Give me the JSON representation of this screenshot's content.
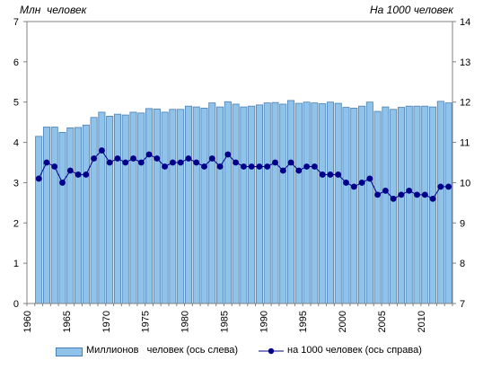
{
  "chart_data": {
    "type": "bar+line",
    "left_axis_title": "Млн  человек",
    "right_axis_title": "На 1000 человек",
    "left_ylim": [
      0,
      7
    ],
    "right_ylim": [
      7,
      14
    ],
    "left_ticks": [
      "0",
      "1",
      "2",
      "3",
      "4",
      "5",
      "6",
      "7"
    ],
    "right_ticks": [
      "7",
      "8",
      "9",
      "10",
      "11",
      "12",
      "13",
      "14"
    ],
    "x_ticks": [
      "1960",
      "1965",
      "1970",
      "1975",
      "1980",
      "1985",
      "1990",
      "1995",
      "2000",
      "2005",
      "2010"
    ],
    "years": [
      1961,
      1962,
      1963,
      1964,
      1965,
      1966,
      1967,
      1968,
      1969,
      1970,
      1971,
      1972,
      1973,
      1974,
      1975,
      1976,
      1977,
      1978,
      1979,
      1980,
      1981,
      1982,
      1983,
      1984,
      1985,
      1986,
      1987,
      1988,
      1989,
      1990,
      1991,
      1992,
      1993,
      1994,
      1995,
      1996,
      1997,
      1998,
      1999,
      2000,
      2001,
      2002,
      2003,
      2004,
      2005,
      2006,
      2007,
      2008,
      2009,
      2010,
      2011,
      2012,
      2013
    ],
    "series": [
      {
        "name": "Миллионов   человек (ось слева)",
        "axis": "left",
        "type": "bar",
        "values": [
          4.15,
          4.38,
          4.38,
          4.25,
          4.36,
          4.37,
          4.43,
          4.62,
          4.75,
          4.65,
          4.7,
          4.68,
          4.75,
          4.73,
          4.84,
          4.83,
          4.75,
          4.82,
          4.82,
          4.9,
          4.88,
          4.85,
          4.98,
          4.88,
          5.01,
          4.95,
          4.88,
          4.9,
          4.93,
          4.98,
          4.99,
          4.95,
          5.04,
          4.97,
          5.0,
          4.98,
          4.96,
          5.0,
          4.97,
          4.87,
          4.85,
          4.9,
          5.0,
          4.77,
          4.88,
          4.82,
          4.87,
          4.9,
          4.9,
          4.9,
          4.88,
          5.02,
          4.98
        ]
      },
      {
        "name": "на 1000 человек (ось справа)",
        "axis": "right",
        "type": "line",
        "values": [
          10.1,
          10.5,
          10.4,
          10.0,
          10.3,
          10.2,
          10.2,
          10.6,
          10.8,
          10.5,
          10.6,
          10.5,
          10.6,
          10.5,
          10.7,
          10.6,
          10.4,
          10.5,
          10.5,
          10.6,
          10.5,
          10.4,
          10.6,
          10.4,
          10.7,
          10.5,
          10.4,
          10.4,
          10.4,
          10.4,
          10.5,
          10.3,
          10.5,
          10.3,
          10.4,
          10.4,
          10.2,
          10.2,
          10.2,
          10.0,
          9.9,
          10.0,
          10.1,
          9.7,
          9.8,
          9.6,
          9.7,
          9.8,
          9.7,
          9.7,
          9.6,
          9.9,
          9.9
        ]
      }
    ],
    "colors": {
      "bar_fill": "#8fc3ea",
      "bar_stroke": "#4a7fb5",
      "line": "#00008b",
      "marker": "#00008b",
      "plot_background": "#ffffff"
    },
    "grid": false,
    "legend_position": "bottom"
  }
}
